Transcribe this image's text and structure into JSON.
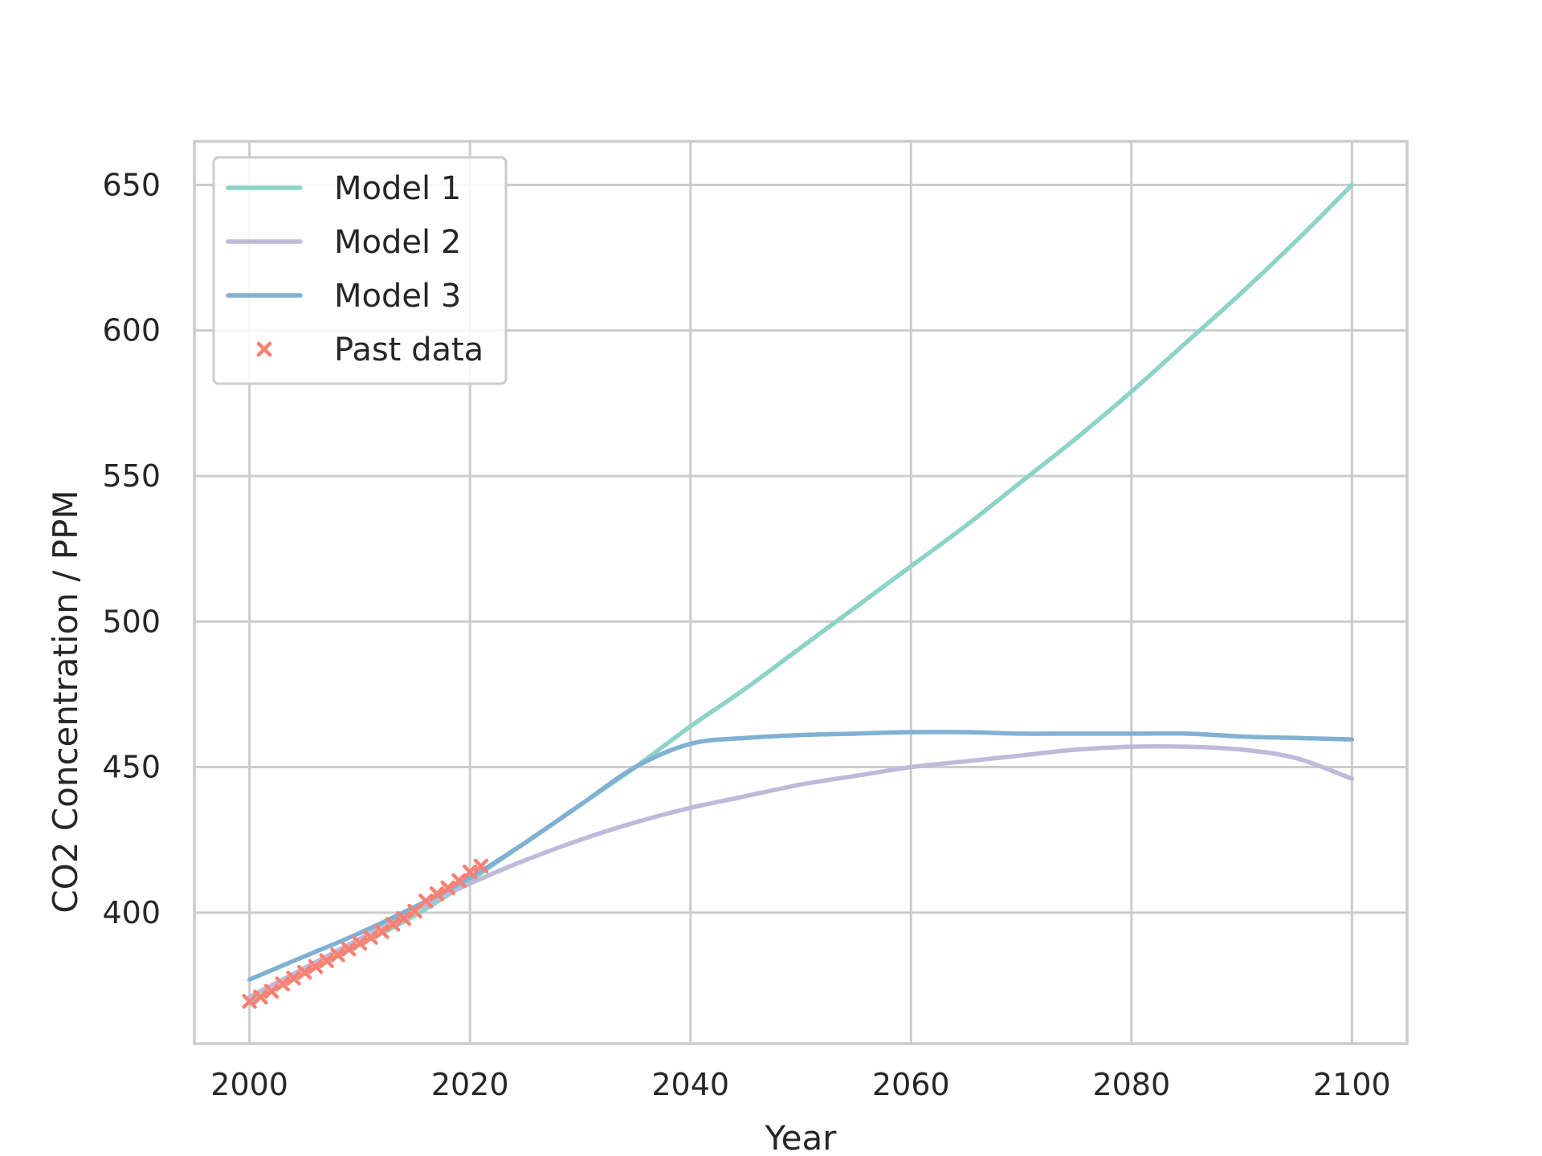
{
  "chart_data": {
    "type": "line",
    "title": "",
    "xlabel": "Year",
    "ylabel": "CO2 Concentration / PPM",
    "xlim": [
      1995,
      2105
    ],
    "ylim": [
      355,
      665
    ],
    "xticks": [
      2000,
      2020,
      2040,
      2060,
      2080,
      2100
    ],
    "yticks": [
      400,
      450,
      500,
      550,
      600,
      650
    ],
    "grid": true,
    "legend_position": "top-left",
    "series": [
      {
        "name": "Model 1",
        "kind": "line",
        "color": "#8dd3c7",
        "x": [
          2000,
          2005,
          2010,
          2015,
          2020,
          2025,
          2030,
          2035,
          2040,
          2045,
          2050,
          2055,
          2060,
          2065,
          2070,
          2075,
          2080,
          2085,
          2090,
          2095,
          2100
        ],
        "y": [
          369,
          379,
          389,
          399,
          411,
          424,
          437,
          450,
          464,
          477,
          491,
          505,
          519,
          533,
          548,
          563,
          579,
          596,
          613,
          631,
          650
        ]
      },
      {
        "name": "Model 2",
        "kind": "line",
        "color": "#bebada",
        "x": [
          2000,
          2005,
          2010,
          2015,
          2020,
          2025,
          2030,
          2035,
          2040,
          2045,
          2050,
          2055,
          2060,
          2065,
          2070,
          2075,
          2080,
          2085,
          2090,
          2095,
          2100
        ],
        "y": [
          371,
          381,
          391,
          401,
          410,
          418,
          425,
          431,
          436,
          440,
          444,
          447,
          450,
          452,
          454,
          456,
          457,
          457,
          456,
          453,
          446
        ]
      },
      {
        "name": "Model 3",
        "kind": "line",
        "color": "#80b1d3",
        "x": [
          2000,
          2005,
          2010,
          2015,
          2020,
          2025,
          2030,
          2035,
          2040,
          2045,
          2050,
          2055,
          2060,
          2065,
          2070,
          2075,
          2080,
          2085,
          2090,
          2095,
          2100
        ],
        "y": [
          377,
          385,
          393,
          402,
          412,
          424,
          437,
          450,
          458,
          460,
          461,
          461.5,
          462,
          462,
          461.5,
          461.5,
          461.5,
          461.5,
          460.5,
          460,
          459.5
        ]
      },
      {
        "name": "Past data",
        "kind": "scatter",
        "marker": "x",
        "color": "#fb8072",
        "x": [
          2000,
          2001,
          2002,
          2003,
          2004,
          2005,
          2006,
          2007,
          2008,
          2009,
          2010,
          2011,
          2012,
          2013,
          2014,
          2015,
          2016,
          2017,
          2018,
          2019,
          2020,
          2021
        ],
        "y": [
          369.5,
          371.0,
          373.0,
          375.5,
          377.5,
          379.5,
          381.5,
          383.5,
          385.5,
          387.5,
          389.5,
          391.5,
          393.5,
          396.0,
          398.0,
          400.5,
          404.0,
          406.5,
          408.5,
          411.0,
          414.0,
          416.0
        ]
      }
    ]
  }
}
